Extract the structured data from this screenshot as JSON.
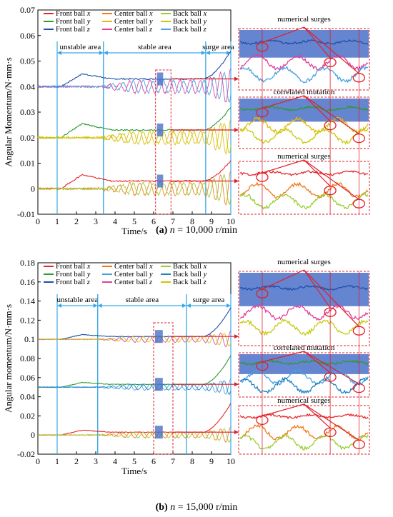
{
  "chart_data": [
    {
      "type": "line",
      "panel_label": "(a)",
      "caption_eq": "n",
      "caption_value": " = 10,000 r/min",
      "xlabel": "Time/s",
      "ylabel": "Angular Momentum/N·mm·s",
      "xlim": [
        0,
        10
      ],
      "ylim": [
        -0.01,
        0.07
      ],
      "x_ticks": [
        "0",
        "1",
        "2",
        "3",
        "4",
        "5",
        "6",
        "7",
        "8",
        "9",
        "10"
      ],
      "y_ticks": [
        "-0.01",
        "0",
        "0.01",
        "0.02",
        "0.03",
        "0.04",
        "0.05",
        "0.06",
        "0.07"
      ],
      "areas": [
        {
          "label": "unstable area",
          "from": 1,
          "to": 3.4
        },
        {
          "label": "stable area",
          "from": 3.4,
          "to": 8.7
        },
        {
          "label": "surge area",
          "from": 8.7,
          "to": 10
        }
      ],
      "legend": [
        {
          "ball": "Front ball ",
          "axis": "x",
          "color": "#e8262a"
        },
        {
          "ball": "Center ball ",
          "axis": "x",
          "color": "#f07a1a"
        },
        {
          "ball": "Back ball ",
          "axis": "x",
          "color": "#9acd32"
        },
        {
          "ball": "Front ball ",
          "axis": "y",
          "color": "#2a9a32"
        },
        {
          "ball": "Center ball ",
          "axis": "y",
          "color": "#e8b70a"
        },
        {
          "ball": "Back ball ",
          "axis": "y",
          "color": "#c8c80a"
        },
        {
          "ball": "Front ball ",
          "axis": "z",
          "color": "#1f4fa8"
        },
        {
          "ball": "Center ball ",
          "axis": "z",
          "color": "#e0409c"
        },
        {
          "ball": "Back ball ",
          "axis": "z",
          "color": "#4aa0e0"
        }
      ],
      "groups": [
        {
          "base": 0.04,
          "peak": 0.045,
          "peak_t": 2.3,
          "settle": 0.043,
          "osc": 0.0025,
          "surge": 0.011
        },
        {
          "base": 0.02,
          "peak": 0.0255,
          "peak_t": 2.3,
          "settle": 0.023,
          "osc": 0.0025,
          "surge": 0.009
        },
        {
          "base": 0.0,
          "peak": 0.0055,
          "peak_t": 2.3,
          "settle": 0.003,
          "osc": 0.0025,
          "surge": 0.008
        }
      ],
      "zoom_window": [
        6.1,
        6.9
      ],
      "callouts": [
        "numerical surges",
        "correlated mutation",
        "numerical surges"
      ]
    },
    {
      "type": "line",
      "panel_label": "(b)",
      "caption_eq": "n",
      "caption_value": " = 15,000 r/min",
      "xlabel": "Time/s",
      "ylabel": "Angular momentum/N·mm·s",
      "xlim": [
        0,
        10
      ],
      "ylim": [
        -0.02,
        0.18
      ],
      "x_ticks": [
        "0",
        "1",
        "2",
        "3",
        "4",
        "5",
        "6",
        "7",
        "8",
        "9",
        "10"
      ],
      "y_ticks": [
        "-0.02",
        "0",
        "0.02",
        "0.04",
        "0.06",
        "0.08",
        "0.1",
        "0.12",
        "0.14",
        "0.16",
        "0.18"
      ],
      "areas": [
        {
          "label": "unstable area",
          "from": 1,
          "to": 3.1
        },
        {
          "label": "stable area",
          "from": 3.1,
          "to": 7.7
        },
        {
          "label": "surge area",
          "from": 7.7,
          "to": 10
        }
      ],
      "legend": [
        {
          "ball": "Front ball ",
          "axis": "x",
          "color": "#e8262a"
        },
        {
          "ball": "Center ball ",
          "axis": "x",
          "color": "#f07a1a"
        },
        {
          "ball": "Back ball ",
          "axis": "x",
          "color": "#9acd32"
        },
        {
          "ball": "Front ball ",
          "axis": "y",
          "color": "#2a9a32"
        },
        {
          "ball": "Center ball ",
          "axis": "y",
          "color": "#4aa0e0"
        },
        {
          "ball": "Back ball ",
          "axis": "y",
          "color": "#2080c0"
        },
        {
          "ball": "Front ball ",
          "axis": "z",
          "color": "#1f4fa8"
        },
        {
          "ball": "Center ball ",
          "axis": "z",
          "color": "#e0409c"
        },
        {
          "ball": "Back ball ",
          "axis": "z",
          "color": "#c8c80a"
        }
      ],
      "groups": [
        {
          "base": 0.1,
          "peak": 0.105,
          "peak_t": 2.3,
          "settle": 0.103,
          "osc": 0.003,
          "surge": 0.03
        },
        {
          "base": 0.05,
          "peak": 0.055,
          "peak_t": 2.3,
          "settle": 0.053,
          "osc": 0.003,
          "surge": 0.03
        },
        {
          "base": 0.0,
          "peak": 0.005,
          "peak_t": 2.3,
          "settle": 0.003,
          "osc": 0.003,
          "surge": 0.03
        }
      ],
      "zoom_window": [
        6.0,
        7.0
      ],
      "callouts": [
        "numerical surges",
        "correlated mutation",
        "numerical surges"
      ]
    }
  ]
}
